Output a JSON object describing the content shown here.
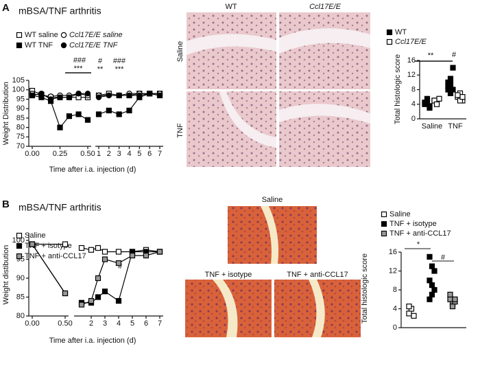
{
  "panels": {
    "A": "A",
    "B": "B"
  },
  "images": {
    "a_columns": [
      "WT",
      "Ccl17E/E"
    ],
    "a_rows": [
      "Saline",
      "TNF"
    ],
    "b_labels": [
      "Saline",
      "TNF + isotype",
      "TNF + anti-CCL17"
    ]
  },
  "chart_data": [
    {
      "type": "line",
      "title": "mBSA/TNF arthritis",
      "ylabel": "Weight Distribution",
      "xlabel": "Time after i.a. injection (d)",
      "x": [
        0,
        0.083,
        0.167,
        0.25,
        0.333,
        0.417,
        0.5,
        1,
        2,
        3,
        4,
        5,
        6,
        7
      ],
      "xlim": [
        [
          0,
          0.5
        ],
        [
          1,
          7
        ]
      ],
      "xticks": [
        {
          "value": 0,
          "label": "0.00"
        },
        {
          "value": 0.25,
          "label": "0.25"
        },
        {
          "value": 0.5,
          "label": "0.50"
        },
        1,
        2,
        3,
        4,
        5,
        6,
        7
      ],
      "ylim": [
        70,
        105
      ],
      "yticks": [
        70,
        75,
        80,
        85,
        90,
        95,
        100,
        105
      ],
      "series": [
        {
          "name": "WT saline",
          "color": "#ffffff",
          "marker": "square",
          "values": [
            99.5,
            97.5,
            96,
            96,
            96,
            96,
            96,
            97,
            98,
            97,
            97,
            98,
            98,
            98
          ]
        },
        {
          "name": "Ccl17E/E saline",
          "color": "#ffffff",
          "marker": "circle",
          "values": [
            98,
            97,
            96.5,
            97,
            97,
            98,
            97,
            97,
            97,
            97,
            98,
            98,
            98,
            98
          ]
        },
        {
          "name": "WT TNF",
          "color": "#000000",
          "marker": "square",
          "values": [
            97,
            96,
            94,
            80,
            86,
            87,
            84,
            87,
            89,
            87,
            89,
            96,
            98,
            97
          ]
        },
        {
          "name": "Ccl17E/E TNF",
          "color": "#000000",
          "marker": "circle",
          "values": [
            97,
            98,
            95,
            96,
            96,
            98,
            98,
            96,
            97,
            97,
            97,
            97,
            98,
            97
          ]
        }
      ],
      "annotations": [
        "###",
        "***",
        "#",
        "**",
        "###",
        "***"
      ]
    },
    {
      "type": "dot",
      "ylabel": "Total histologic score",
      "categories": [
        "Saline",
        "TNF"
      ],
      "ylim": [
        0,
        16
      ],
      "yticks": [
        0,
        4,
        8,
        12,
        16
      ],
      "series": [
        {
          "name": "WT",
          "color": "#000000",
          "marker": "square",
          "values": [
            [
              4,
              5,
              3,
              4.5,
              5.5,
              3.5
            ],
            [
              9,
              11,
              8,
              10,
              9.5,
              14,
              8,
              7
            ]
          ]
        },
        {
          "name": "Ccl17E/E",
          "color": "#ffffff",
          "marker": "square",
          "values": [
            [
              5,
              4.5,
              5.5,
              5,
              4
            ],
            [
              6,
              7,
              5,
              6.5,
              5,
              6
            ]
          ]
        }
      ],
      "annotations": [
        "**",
        "#"
      ]
    },
    {
      "type": "line",
      "title": "mBSA/TNF arthritis",
      "ylabel": "Weight distibution",
      "xlabel": "Time after i.a. injection (d)",
      "x": [
        0,
        0.5,
        1.3,
        2,
        2.5,
        3,
        4,
        5,
        6,
        7
      ],
      "xlim": [
        [
          0,
          0.5
        ],
        [
          1,
          7
        ]
      ],
      "xticks": [
        {
          "value": 0,
          "label": "0.00"
        },
        {
          "value": 0.5,
          "label": "0.50"
        },
        2,
        3,
        4,
        5,
        6,
        7
      ],
      "ylim": [
        80,
        102
      ],
      "yticks": [
        80,
        85,
        90,
        95,
        100
      ],
      "series": [
        {
          "name": "Saline",
          "color": "#ffffff",
          "marker": "square",
          "values": [
            99,
            99,
            98,
            97.5,
            98,
            97,
            97,
            97,
            97.5,
            97
          ]
        },
        {
          "name": "TNF + isotype",
          "color": "#000000",
          "marker": "square",
          "values": [
            99,
            86,
            83.5,
            83.5,
            85,
            86.5,
            84,
            97,
            97,
            97
          ]
        },
        {
          "name": "TNF + anti-CCL17",
          "color": "#999999",
          "marker": "square",
          "values": [
            99,
            86,
            83,
            84,
            90,
            95,
            94,
            96,
            96,
            97
          ]
        }
      ],
      "annotations": [
        "#"
      ]
    },
    {
      "type": "dot",
      "ylabel": "Total histologic score",
      "categories": [
        null,
        null,
        null
      ],
      "ylim": [
        0,
        16
      ],
      "yticks": [
        0,
        4,
        8,
        12,
        16
      ],
      "series": [
        {
          "name": "Saline",
          "color": "#ffffff",
          "marker": "square",
          "values": [
            [
              3,
              4,
              2.5,
              4.5
            ],
            null,
            null
          ]
        },
        {
          "name": "TNF + isotype",
          "color": "#000000",
          "marker": "square",
          "values": [
            null,
            [
              15,
              13,
              12,
              10,
              9,
              8,
              6,
              7
            ],
            null
          ]
        },
        {
          "name": "TNF + anti-CCL17",
          "color": "#999999",
          "marker": "square",
          "values": [
            null,
            null,
            [
              6,
              5,
              5.5,
              7,
              4.5,
              6
            ]
          ]
        }
      ],
      "annotations": [
        "*",
        "#"
      ]
    }
  ]
}
